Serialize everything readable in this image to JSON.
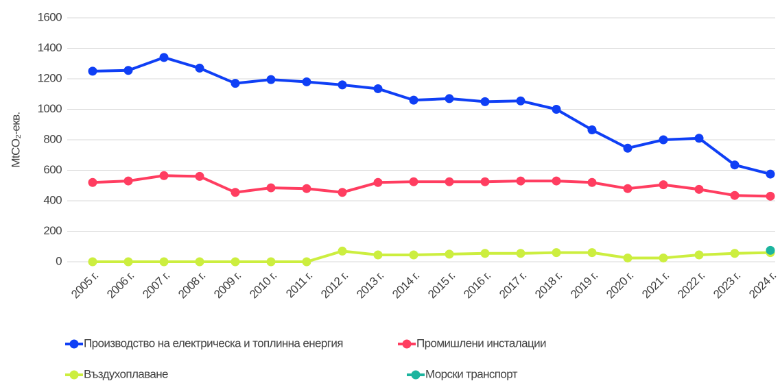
{
  "chart_data": {
    "type": "line",
    "ylabel": "MtCO₂-екв.",
    "categories": [
      "2005 г.",
      "2006 г.",
      "2007 г.",
      "2008 г.",
      "2009 г.",
      "2010 г.",
      "2011 г.",
      "2012 г.",
      "2013 г.",
      "2014 г.",
      "2015 г.",
      "2016 г.",
      "2017 г.",
      "2018 г.",
      "2019 г.",
      "2020 г.",
      "2021 г.",
      "2022 г.",
      "2023 г.",
      "2024 г."
    ],
    "series": [
      {
        "name": "Производство на електрическа и топлинна енергия",
        "color": "#0f3ff5",
        "values": [
          1250,
          1255,
          1340,
          1270,
          1170,
          1195,
          1180,
          1160,
          1135,
          1060,
          1070,
          1050,
          1055,
          1000,
          865,
          745,
          800,
          810,
          635,
          575
        ]
      },
      {
        "name": "Промишлени инсталации",
        "color": "#ff3d60",
        "values": [
          520,
          530,
          565,
          560,
          455,
          485,
          480,
          455,
          520,
          525,
          525,
          525,
          530,
          530,
          520,
          480,
          505,
          475,
          435,
          430
        ]
      },
      {
        "name": "Въздухоплаване",
        "color": "#ccee3f",
        "values": [
          0,
          0,
          0,
          0,
          0,
          0,
          0,
          70,
          45,
          45,
          50,
          55,
          55,
          60,
          60,
          25,
          25,
          45,
          55,
          60
        ]
      },
      {
        "name": "Морски транспорт",
        "color": "#1cb49e",
        "values": [
          null,
          null,
          null,
          null,
          null,
          null,
          null,
          null,
          null,
          null,
          null,
          null,
          null,
          null,
          null,
          null,
          null,
          null,
          null,
          75
        ]
      }
    ],
    "ylim": [
      0,
      1600
    ],
    "yticks": [
      0,
      200,
      400,
      600,
      800,
      1000,
      1200,
      1400,
      1600
    ],
    "grid": true
  }
}
